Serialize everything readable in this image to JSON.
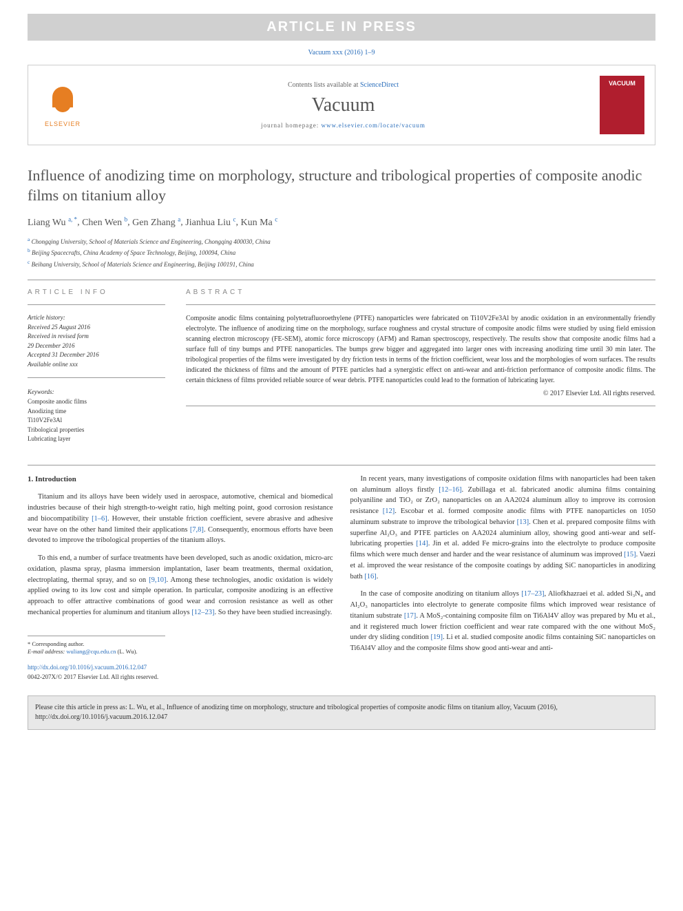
{
  "banner": "ARTICLE IN PRESS",
  "citation_header": "Vacuum xxx (2016) 1–9",
  "header": {
    "contents_prefix": "Contents lists available at ",
    "contents_link": "ScienceDirect",
    "journal": "Vacuum",
    "homepage_prefix": "journal homepage: ",
    "homepage_link": "www.elsevier.com/locate/vacuum",
    "publisher_label": "ELSEVIER",
    "cover_text": "VACUUM"
  },
  "title": "Influence of anodizing time on morphology, structure and tribological properties of composite anodic films on titanium alloy",
  "authors": [
    {
      "name": "Liang Wu",
      "sup": "a, *"
    },
    {
      "name": "Chen Wen",
      "sup": "b"
    },
    {
      "name": "Gen Zhang",
      "sup": "a"
    },
    {
      "name": "Jianhua Liu",
      "sup": "c"
    },
    {
      "name": "Kun Ma",
      "sup": "c"
    }
  ],
  "affiliations": [
    {
      "sup": "a",
      "text": "Chongqing University, School of Materials Science and Engineering, Chongqing 400030, China"
    },
    {
      "sup": "b",
      "text": "Beijing Spacecrafts, China Academy of Space Technology, Beijing, 100094, China"
    },
    {
      "sup": "c",
      "text": "Beihang University, School of Materials Science and Engineering, Beijing 100191, China"
    }
  ],
  "info_heading": "ARTICLE INFO",
  "abstract_heading": "ABSTRACT",
  "history": {
    "label": "Article history:",
    "received": "Received 25 August 2016",
    "revised": "Received in revised form",
    "revised_date": "29 December 2016",
    "accepted": "Accepted 31 December 2016",
    "online": "Available online xxx"
  },
  "keywords_label": "Keywords:",
  "keywords": [
    "Composite anodic films",
    "Anodizing time",
    "Ti10V2Fe3Al",
    "Tribological properties",
    "Lubricating layer"
  ],
  "abstract": "Composite anodic films containing polytetrafluoroethylene (PTFE) nanoparticles were fabricated on Ti10V2Fe3Al by anodic oxidation in an environmentally friendly electrolyte. The influence of anodizing time on the morphology, surface roughness and crystal structure of composite anodic films were studied by using field emission scanning electron microscopy (FE-SEM), atomic force microscopy (AFM) and Raman spectroscopy, respectively. The results show that composite anodic films had a surface full of tiny bumps and PTFE nanoparticles. The bumps grew bigger and aggregated into larger ones with increasing anodizing time until 30 min later. The tribological properties of the films were investigated by dry friction tests in terms of the friction coefficient, wear loss and the morphologies of worn surfaces. The results indicated the thickness of films and the amount of PTFE particles had a synergistic effect on anti-wear and anti-friction performance of composite anodic films. The certain thickness of films provided reliable source of wear debris. PTFE nanoparticles could lead to the formation of lubricating layer.",
  "copyright": "© 2017 Elsevier Ltd. All rights reserved.",
  "section1": "1. Introduction",
  "para1": "Titanium and its alloys have been widely used in aerospace, automotive, chemical and biomedical industries because of their high strength-to-weight ratio, high melting point, good corrosion resistance and biocompatibility [1–6]. However, their unstable friction coefficient, severe abrasive and adhesive wear have on the other hand limited their applications [7,8]. Consequently, enormous efforts have been devoted to improve the tribological properties of the titanium alloys.",
  "para2": "To this end, a number of surface treatments have been developed, such as anodic oxidation, micro-arc oxidation, plasma spray, plasma immersion implantation, laser beam treatments, thermal oxidation, electroplating, thermal spray, and so on [9,10]. Among these technologies, anodic oxidation is widely applied owing to its low cost and simple operation. In particular, composite anodizing is an effective approach to offer attractive combinations of good wear and corrosion resistance as well as other mechanical properties for aluminum and titanium alloys [12–23]. So they have been studied increasingly.",
  "para3": "In recent years, many investigations of composite oxidation films with nanoparticles had been taken on aluminum alloys firstly [12–16]. Zubillaga et al. fabricated anodic alumina films containing polyaniline and TiO₂ or ZrO₂ nanoparticles on an AA2024 aluminum alloy to improve its corrosion resistance [12]. Escobar et al. formed composite anodic films with PTFE nanoparticles on 1050 aluminum substrate to improve the tribological behavior [13]. Chen et al. prepared composite films with superfine Al₂O₃ and PTFE particles on AA2024 aluminium alloy, showing good anti-wear and self-lubricating properties [14]. Jin et al. added Fe micro-grains into the electrolyte to produce composite films which were much denser and harder and the wear resistance of aluminum was improved [15]. Vaezi et al. improved the wear resistance of the composite coatings by adding SiC nanoparticles in anodizing bath [16].",
  "para4": "In the case of composite anodizing on titanium alloys [17–23], Aliofkhazraei et al. added Si₃N₄ and Al₂O₃ nanoparticles into electrolyte to generate composite films which improved wear resistance of titanium substrate [17]. A MoS₂-containing composite film on Ti6Al4V alloy was prepared by Mu et al., and it registered much lower friction coefficient and wear rate compared with the one without MoS₂ under dry sliding condition [19]. Li et al. studied composite anodic films containing SiC nanoparticles on Ti6Al4V alloy and the composite films show good anti-wear and anti-",
  "corresponding": {
    "label": "* Corresponding author.",
    "email_label": "E-mail address:",
    "email": "wuliang@cqu.edu.cn",
    "email_name": "(L. Wu)."
  },
  "doi": "http://dx.doi.org/10.1016/j.vacuum.2016.12.047",
  "issn_line": "0042-207X/© 2017 Elsevier Ltd. All rights reserved.",
  "cite_box": "Please cite this article in press as: L. Wu, et al., Influence of anodizing time on morphology, structure and tribological properties of composite anodic films on titanium alloy, Vacuum (2016), http://dx.doi.org/10.1016/j.vacuum.2016.12.047",
  "colors": {
    "link": "#2a6ebb",
    "banner_bg": "#d0d0d0",
    "cover_bg": "#b01e2e",
    "elsevier": "#e67e22"
  }
}
